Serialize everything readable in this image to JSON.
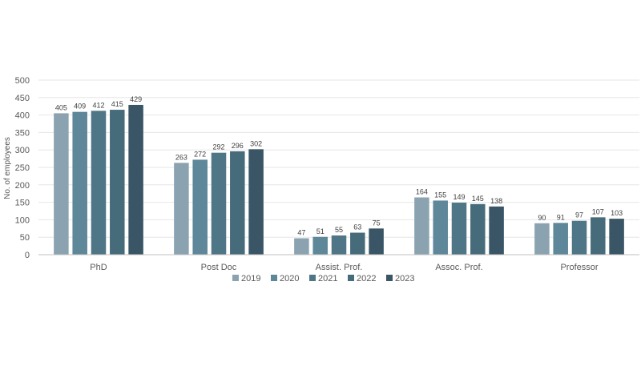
{
  "chart_data": {
    "type": "bar",
    "categories": [
      "PhD",
      "Post Doc",
      "Assist. Prof.",
      "Assoc. Prof.",
      "Professor"
    ],
    "series": [
      {
        "name": "2019",
        "color": "#8ba3b0",
        "values": [
          405,
          263,
          47,
          164,
          90
        ]
      },
      {
        "name": "2020",
        "color": "#5e8799",
        "values": [
          409,
          272,
          51,
          155,
          91
        ]
      },
      {
        "name": "2021",
        "color": "#4f7686",
        "values": [
          412,
          292,
          55,
          149,
          97
        ]
      },
      {
        "name": "2022",
        "color": "#466b7b",
        "values": [
          415,
          296,
          63,
          145,
          107
        ]
      },
      {
        "name": "2023",
        "color": "#3a5666",
        "values": [
          429,
          302,
          75,
          138,
          103
        ]
      }
    ],
    "title": "",
    "xlabel": "",
    "ylabel": "No. of employees",
    "ylim": [
      0,
      500
    ],
    "yticks": [
      0,
      50,
      100,
      150,
      200,
      250,
      300,
      350,
      400,
      450,
      500
    ],
    "grid": true,
    "legend": "bottom"
  }
}
